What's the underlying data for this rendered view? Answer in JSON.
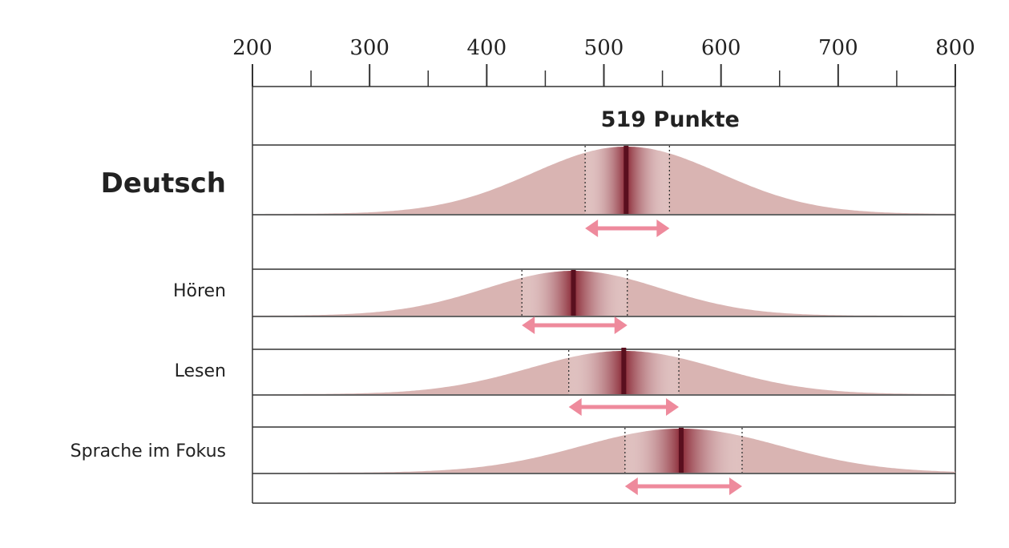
{
  "chart_data": {
    "type": "distribution",
    "xlim": [
      200,
      800
    ],
    "ticks": [
      200,
      300,
      400,
      500,
      600,
      700,
      800
    ],
    "tick_labels": [
      "200",
      "300",
      "400",
      "500",
      "600",
      "700",
      "800"
    ],
    "annotation": "519 Punkte",
    "rows": [
      {
        "label": "Deutsch",
        "mean": 519,
        "ci": [
          484,
          556
        ],
        "arrow": [
          484,
          556
        ],
        "sd": 80,
        "main": true
      },
      {
        "label": "Hören",
        "mean": 474,
        "ci": [
          430,
          520
        ],
        "arrow": [
          430,
          520
        ],
        "sd": 75,
        "main": false
      },
      {
        "label": "Lesen",
        "mean": 517,
        "ci": [
          470,
          564
        ],
        "arrow": [
          470,
          564
        ],
        "sd": 80,
        "main": false
      },
      {
        "label": "Sprache im Fokus",
        "mean": 566,
        "ci": [
          518,
          618
        ],
        "arrow": [
          518,
          618
        ],
        "sd": 85,
        "main": false
      }
    ],
    "colors": {
      "distribution": "#d9b4b2",
      "band_dark": "#8a2835",
      "mean_line": "#5a0f1e",
      "arrow": "#ee8a9c",
      "frame": "#333333"
    }
  }
}
